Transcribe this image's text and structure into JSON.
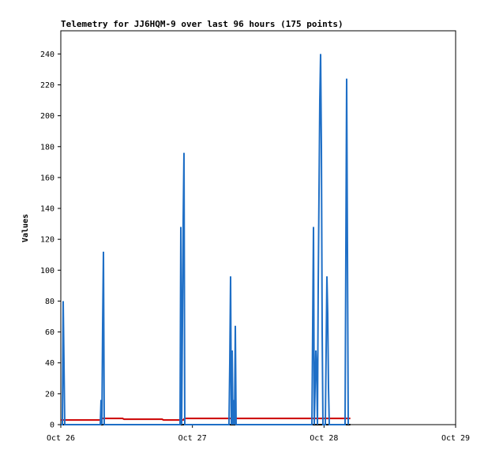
{
  "chart_data": {
    "type": "line",
    "title": "Telemetry for JJ6HQM-9 over last 96 hours (175 points)",
    "y_label": "Values",
    "xlim": [
      26,
      29
    ],
    "xticks": [
      {
        "value": 26,
        "label": "Oct 26"
      },
      {
        "value": 27,
        "label": "Oct 27"
      },
      {
        "value": 28,
        "label": "Oct 28"
      },
      {
        "value": 29,
        "label": "Oct 29"
      }
    ],
    "ylim": [
      0,
      255
    ],
    "yticks": [
      0,
      20,
      40,
      60,
      80,
      100,
      120,
      140,
      160,
      180,
      200,
      220,
      240
    ],
    "series": [
      {
        "color": "#000000",
        "x": [
          26.0,
          28.2
        ],
        "values": [
          0,
          0
        ]
      },
      {
        "color": "#cc0000",
        "x": [
          26.0,
          26.3,
          26.31,
          26.47,
          26.48,
          26.77,
          26.78,
          26.93,
          26.94,
          28.2
        ],
        "values": [
          3,
          3,
          4,
          4,
          3.5,
          3.5,
          3,
          3,
          4,
          4
        ]
      },
      {
        "color": "#1f6fc6",
        "x": [
          26.0,
          26.012,
          26.018,
          26.024,
          26.03,
          26.3,
          26.306,
          26.312,
          26.318,
          26.324,
          26.33,
          26.906,
          26.912,
          26.918,
          26.924,
          26.93,
          26.936,
          26.942,
          27.278,
          27.284,
          27.29,
          27.296,
          27.302,
          27.308,
          27.314,
          27.32,
          27.326,
          27.332,
          27.908,
          27.914,
          27.92,
          27.926,
          27.932,
          27.938,
          27.944,
          27.95,
          27.956,
          27.962,
          27.968,
          27.974,
          27.98,
          27.986,
          27.992,
          28.01,
          28.016,
          28.022,
          28.028,
          28.034,
          28.04,
          28.16,
          28.166,
          28.172,
          28.178,
          28.184
        ],
        "values": [
          0,
          0,
          80,
          40,
          0,
          0,
          16,
          0,
          64,
          112,
          0,
          0,
          128,
          0,
          64,
          132,
          176,
          0,
          0,
          40,
          96,
          0,
          48,
          0,
          16,
          0,
          64,
          0,
          0,
          64,
          128,
          0,
          24,
          48,
          36,
          0,
          90,
          150,
          210,
          240,
          180,
          60,
          0,
          0,
          48,
          96,
          72,
          24,
          0,
          0,
          112,
          224,
          112,
          0
        ]
      }
    ]
  }
}
